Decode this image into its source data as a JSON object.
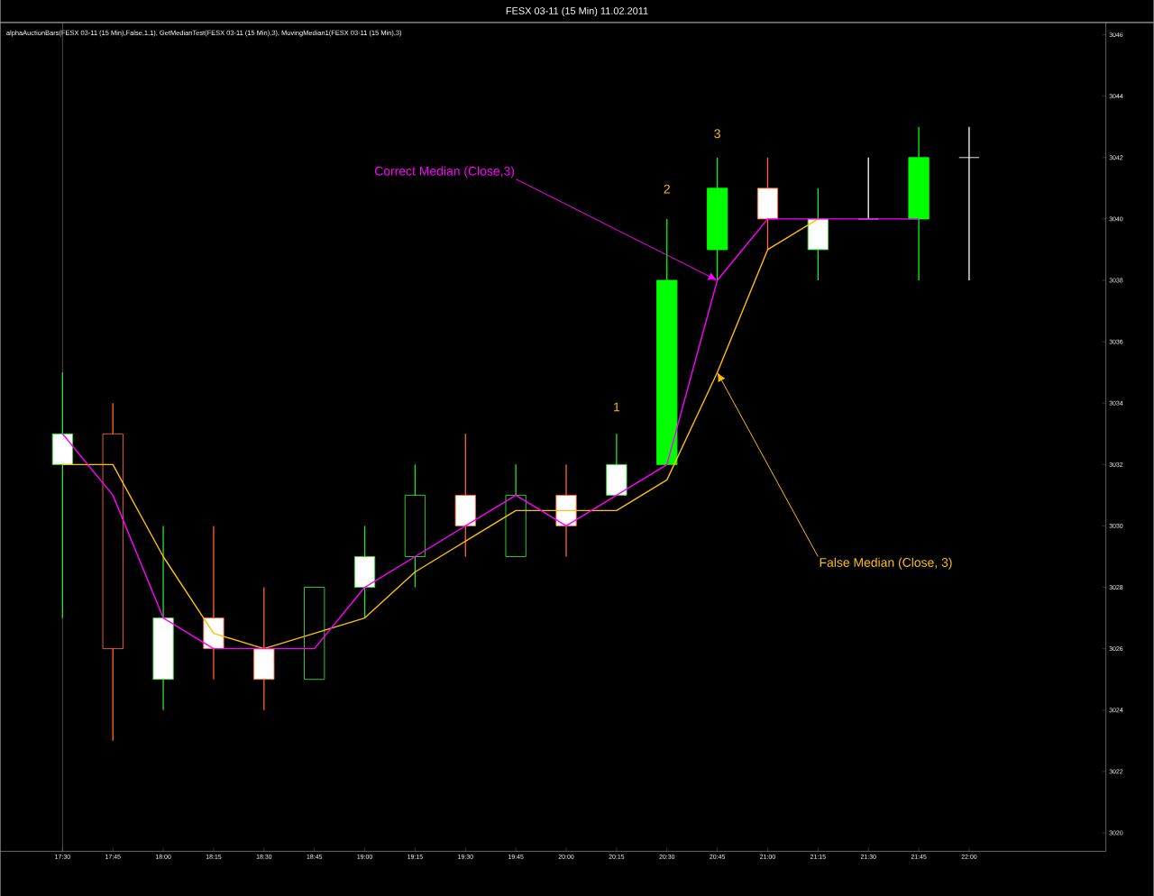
{
  "chart_data": {
    "type": "candlestick",
    "title": "FESX 03-11 (15 Min)  11.02.2011",
    "subtitle": "alphaAuctionBars(FESX 03-11 (15 Min),False,1,1), GetMedianTest(FESX 03-11 (15 Min),3), MovingMedian1(FESX 03-11 (15 Min),3)",
    "categories": [
      "17:30",
      "17:45",
      "18:00",
      "18:15",
      "18:30",
      "18:45",
      "19:00",
      "19:15",
      "19:30",
      "19:45",
      "20:00",
      "20:15",
      "20:30",
      "20:45",
      "21:00",
      "21:15",
      "21:30",
      "21:45",
      "22:00"
    ],
    "ohlc": [
      [
        3032,
        3035,
        3027,
        3033
      ],
      [
        3033,
        3034,
        3023,
        3026
      ],
      [
        3025,
        3030,
        3024,
        3027
      ],
      [
        3027,
        3030,
        3025,
        3026
      ],
      [
        3026,
        3028,
        3024,
        3025
      ],
      [
        3025,
        3028,
        3025,
        3028
      ],
      [
        3028,
        3030,
        3027,
        3029
      ],
      [
        3029,
        3032,
        3028,
        3031
      ],
      [
        3031,
        3033,
        3029,
        3030
      ],
      [
        3029,
        3032,
        3029,
        3031
      ],
      [
        3031,
        3032,
        3029,
        3030
      ],
      [
        3031,
        3033,
        3031,
        3032
      ],
      [
        3032,
        3040,
        3032,
        3038
      ],
      [
        3039,
        3042,
        3038,
        3041
      ],
      [
        3041,
        3042,
        3039,
        3040
      ],
      [
        3039,
        3041,
        3038,
        3040
      ],
      [
        3040,
        3042,
        3040,
        3040
      ],
      [
        3040,
        3043,
        3038,
        3042
      ],
      [
        3042,
        3043,
        3038,
        3042
      ]
    ],
    "colors": [
      "#ffffff",
      "#ff6633",
      "#ffffff",
      "#ffffff",
      "#ffffff",
      "#33dd33",
      "#ffffff",
      "#33dd33",
      "#ffffff",
      "#33dd33",
      "#ffffff",
      "#ffffff",
      "#00ff00",
      "#00ff00",
      "#ffffff",
      "#ffffff",
      "#ffffff",
      "#00ff00",
      "#ffffff"
    ],
    "series": [
      {
        "type": "line",
        "color": "#ffc000",
        "values": [
          3032,
          3032,
          3029,
          3026.5,
          3026,
          3026.5,
          3027,
          3028.5,
          3029.5,
          3030.5,
          3030.5,
          3030.5,
          3031.5,
          3035,
          3039,
          3040,
          null,
          null,
          null
        ]
      },
      {
        "type": "line",
        "color": "#ff00ff",
        "values": [
          3033,
          3031,
          3027,
          3026,
          3026,
          3026,
          3028,
          3029,
          3030,
          3031,
          3030,
          3031,
          3032,
          3038,
          3040,
          3040,
          3040,
          3040,
          null
        ]
      }
    ],
    "ylim": [
      3019.4,
      3046.4
    ],
    "yticks": [
      3020,
      3022,
      3024,
      3026,
      3028,
      3030,
      3032,
      3034,
      3036,
      3038,
      3040,
      3042,
      3044,
      3046
    ],
    "ref_lines": [
      {
        "axis": "x",
        "value": "17:30",
        "color": "#808080"
      }
    ],
    "annotations": [
      "Correct Median (Close,3)",
      "False Median (Close, 3)",
      "1",
      "2",
      "3"
    ]
  }
}
